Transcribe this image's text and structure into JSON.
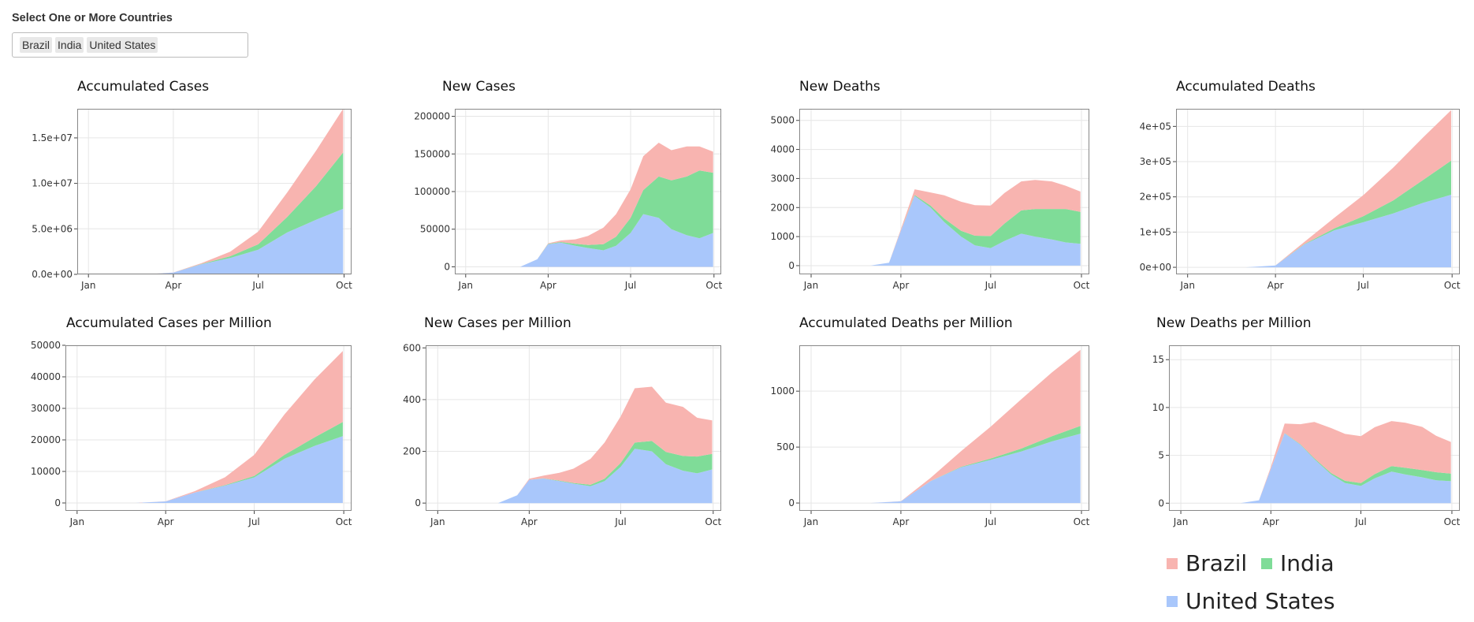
{
  "selector": {
    "label": "Select One or More Countries",
    "selected": [
      "Brazil",
      "India",
      "United States"
    ]
  },
  "colors": {
    "Brazil": "#f8b4b0",
    "India": "#7fdc98",
    "United States": "#a9c7fb"
  },
  "legend": [
    "Brazil",
    "India",
    "United States"
  ],
  "chart_data": [
    {
      "type": "area",
      "title": "Accumulated Cases",
      "xlabel": "",
      "ylabel": "",
      "xticks": [
        "Jan",
        "Apr",
        "Jul",
        "Oct"
      ],
      "yticks": [
        0,
        5000000,
        10000000,
        15000000
      ],
      "ytick_labels": [
        "0.0e+00",
        "5.0e+06",
        "1.0e+07",
        "1.5e+07"
      ],
      "ylim": [
        0,
        18200000
      ],
      "stacked": true,
      "x": [
        "Mar 1",
        "Apr 1",
        "May 1",
        "Jun 1",
        "Jul 1",
        "Aug 1",
        "Sep 1",
        "Sep 30"
      ],
      "series": [
        {
          "name": "United States",
          "values": [
            0,
            200000,
            1100000,
            1800000,
            2700000,
            4600000,
            6000000,
            7200000
          ]
        },
        {
          "name": "India",
          "values": [
            0,
            2000,
            35000,
            190000,
            600000,
            1700000,
            3700000,
            6200000
          ]
        },
        {
          "name": "Brazil",
          "values": [
            0,
            6000,
            90000,
            500000,
            1400000,
            2700000,
            3900000,
            4800000
          ]
        }
      ]
    },
    {
      "type": "area",
      "title": "New Cases",
      "xlabel": "",
      "ylabel": "",
      "xticks": [
        "Jan",
        "Apr",
        "Jul",
        "Oct"
      ],
      "yticks": [
        0,
        50000,
        100000,
        150000,
        200000
      ],
      "ytick_labels": [
        "0",
        "50000",
        "100000",
        "150000",
        "200000"
      ],
      "ylim": [
        -10000,
        210000
      ],
      "stacked": true,
      "x": [
        "Mar 1",
        "Mar 20",
        "Apr 1",
        "Apr 15",
        "May 1",
        "May 15",
        "Jun 1",
        "Jun 15",
        "Jul 1",
        "Jul 15",
        "Aug 1",
        "Aug 15",
        "Sep 1",
        "Sep 15",
        "Sep 30"
      ],
      "series": [
        {
          "name": "United States",
          "values": [
            0,
            10000,
            30000,
            32000,
            28000,
            25000,
            22000,
            28000,
            45000,
            70000,
            65000,
            50000,
            42000,
            38000,
            45000
          ]
        },
        {
          "name": "India",
          "values": [
            0,
            0,
            500,
            1000,
            2500,
            4000,
            8000,
            12000,
            20000,
            32000,
            55000,
            65000,
            78000,
            90000,
            80000
          ]
        },
        {
          "name": "Brazil",
          "values": [
            0,
            0,
            800,
            2000,
            6000,
            12000,
            22000,
            30000,
            38000,
            45000,
            45000,
            40000,
            40000,
            32000,
            28000
          ]
        }
      ]
    },
    {
      "type": "area",
      "title": "New Deaths",
      "xlabel": "",
      "ylabel": "",
      "xticks": [
        "Jan",
        "Apr",
        "Jul",
        "Oct"
      ],
      "yticks": [
        0,
        1000,
        2000,
        3000,
        4000,
        5000
      ],
      "ytick_labels": [
        "0",
        "1000",
        "2000",
        "3000",
        "4000",
        "5000"
      ],
      "ylim": [
        -300,
        5400
      ],
      "stacked": true,
      "x": [
        "Mar 1",
        "Mar 20",
        "Apr 1",
        "Apr 15",
        "May 1",
        "May 15",
        "Jun 1",
        "Jun 15",
        "Jul 1",
        "Jul 15",
        "Aug 1",
        "Aug 15",
        "Sep 1",
        "Sep 15",
        "Sep 30"
      ],
      "series": [
        {
          "name": "United States",
          "values": [
            0,
            100,
            1200,
            2400,
            2000,
            1500,
            1000,
            700,
            600,
            850,
            1100,
            1000,
            900,
            800,
            750
          ]
        },
        {
          "name": "India",
          "values": [
            0,
            0,
            5,
            30,
            70,
            120,
            200,
            330,
            420,
            600,
            800,
            950,
            1050,
            1150,
            1100
          ]
        },
        {
          "name": "Brazil",
          "values": [
            0,
            0,
            50,
            200,
            450,
            800,
            1000,
            1050,
            1050,
            1050,
            1000,
            1000,
            950,
            800,
            700
          ]
        }
      ]
    },
    {
      "type": "area",
      "title": "Accumulated Deaths",
      "xlabel": "",
      "ylabel": "",
      "xticks": [
        "Jan",
        "Apr",
        "Jul",
        "Oct"
      ],
      "yticks": [
        0,
        100000,
        200000,
        300000,
        400000
      ],
      "ytick_labels": [
        "0e+00",
        "1e+05",
        "2e+05",
        "3e+05",
        "4e+05"
      ],
      "ylim": [
        -20000,
        450000
      ],
      "stacked": true,
      "x": [
        "Mar 1",
        "Apr 1",
        "May 1",
        "Jun 1",
        "Jul 1",
        "Aug 1",
        "Sep 1",
        "Sep 30"
      ],
      "series": [
        {
          "name": "United States",
          "values": [
            0,
            5000,
            65000,
            105000,
            128000,
            153000,
            183000,
            206000
          ]
        },
        {
          "name": "India",
          "values": [
            0,
            40,
            1200,
            5500,
            17000,
            37000,
            65000,
            97000
          ]
        },
        {
          "name": "Brazil",
          "values": [
            0,
            240,
            6000,
            30000,
            60000,
            93000,
            121000,
            143000
          ]
        }
      ]
    },
    {
      "type": "area",
      "title": "Accumulated Cases per Million",
      "xlabel": "",
      "ylabel": "",
      "xticks": [
        "Jan",
        "Apr",
        "Jul",
        "Oct"
      ],
      "yticks": [
        0,
        10000,
        20000,
        30000,
        40000,
        50000
      ],
      "ytick_labels": [
        "0",
        "10000",
        "20000",
        "30000",
        "40000",
        "50000"
      ],
      "ylim": [
        -2500,
        50000
      ],
      "stacked": true,
      "x": [
        "Mar 1",
        "Apr 1",
        "May 1",
        "Jun 1",
        "Jul 1",
        "Aug 1",
        "Sep 1",
        "Sep 30"
      ],
      "series": [
        {
          "name": "United States",
          "values": [
            0,
            500,
            3300,
            5500,
            8100,
            14000,
            18100,
            21200
          ]
        },
        {
          "name": "India",
          "values": [
            0,
            2,
            25,
            140,
            440,
            1250,
            2700,
            4500
          ]
        },
        {
          "name": "Brazil",
          "values": [
            0,
            30,
            430,
            2500,
            6700,
            12800,
            18400,
            22500
          ]
        }
      ]
    },
    {
      "type": "area",
      "title": "New Cases per Million",
      "xlabel": "",
      "ylabel": "",
      "xticks": [
        "Jan",
        "Apr",
        "Jul",
        "Oct"
      ],
      "yticks": [
        0,
        200,
        400,
        600
      ],
      "ytick_labels": [
        "0",
        "200",
        "400",
        "600"
      ],
      "ylim": [
        -30,
        610
      ],
      "stacked": true,
      "x": [
        "Mar 1",
        "Mar 20",
        "Apr 1",
        "Apr 15",
        "May 1",
        "May 15",
        "Jun 1",
        "Jun 15",
        "Jul 1",
        "Jul 15",
        "Aug 1",
        "Aug 15",
        "Sep 1",
        "Sep 15",
        "Sep 30"
      ],
      "series": [
        {
          "name": "United States",
          "values": [
            0,
            30,
            90,
            95,
            85,
            75,
            65,
            85,
            140,
            210,
            200,
            150,
            125,
            115,
            130
          ]
        },
        {
          "name": "India",
          "values": [
            0,
            0,
            0,
            1,
            2,
            3,
            6,
            9,
            15,
            24,
            40,
            48,
            57,
            65,
            60
          ]
        },
        {
          "name": "Brazil",
          "values": [
            0,
            0,
            4,
            10,
            30,
            55,
            100,
            140,
            180,
            210,
            210,
            190,
            190,
            150,
            130
          ]
        }
      ]
    },
    {
      "type": "area",
      "title": "Accumulated Deaths per Million",
      "xlabel": "",
      "ylabel": "",
      "xticks": [
        "Jan",
        "Apr",
        "Jul",
        "Oct"
      ],
      "yticks": [
        0,
        500,
        1000
      ],
      "ytick_labels": [
        "0",
        "500",
        "1000"
      ],
      "ylim": [
        -70,
        1410
      ],
      "stacked": true,
      "x": [
        "Mar 1",
        "Apr 1",
        "May 1",
        "Jun 1",
        "Jul 1",
        "Aug 1",
        "Sep 1",
        "Sep 30"
      ],
      "series": [
        {
          "name": "United States",
          "values": [
            0,
            15,
            195,
            320,
            385,
            460,
            550,
            620
          ]
        },
        {
          "name": "India",
          "values": [
            0,
            0,
            1,
            4,
            13,
            27,
            47,
            70
          ]
        },
        {
          "name": "Brazil",
          "values": [
            0,
            1,
            28,
            140,
            285,
            440,
            570,
            680
          ]
        }
      ]
    },
    {
      "type": "area",
      "title": "New Deaths per Million",
      "xlabel": "",
      "ylabel": "",
      "xticks": [
        "Jan",
        "Apr",
        "Jul",
        "Oct"
      ],
      "yticks": [
        0,
        5,
        10,
        15
      ],
      "ytick_labels": [
        "0",
        "5",
        "10",
        "15"
      ],
      "ylim": [
        -0.8,
        16.5
      ],
      "stacked": true,
      "x": [
        "Mar 1",
        "Mar 20",
        "Apr 1",
        "Apr 15",
        "May 1",
        "May 15",
        "Jun 1",
        "Jun 15",
        "Jul 1",
        "Jul 15",
        "Aug 1",
        "Aug 15",
        "Sep 1",
        "Sep 15",
        "Sep 30"
      ],
      "series": [
        {
          "name": "United States",
          "values": [
            0,
            0.3,
            3.6,
            7.3,
            6.1,
            4.6,
            3.0,
            2.1,
            1.8,
            2.6,
            3.3,
            3.0,
            2.7,
            2.4,
            2.3
          ]
        },
        {
          "name": "India",
          "values": [
            0,
            0,
            0,
            0.02,
            0.05,
            0.09,
            0.15,
            0.24,
            0.3,
            0.44,
            0.58,
            0.7,
            0.77,
            0.84,
            0.8
          ]
        },
        {
          "name": "Brazil",
          "values": [
            0,
            0,
            0.2,
            1.0,
            2.1,
            3.8,
            4.7,
            4.9,
            4.9,
            4.9,
            4.7,
            4.7,
            4.5,
            3.8,
            3.3
          ]
        }
      ]
    }
  ]
}
